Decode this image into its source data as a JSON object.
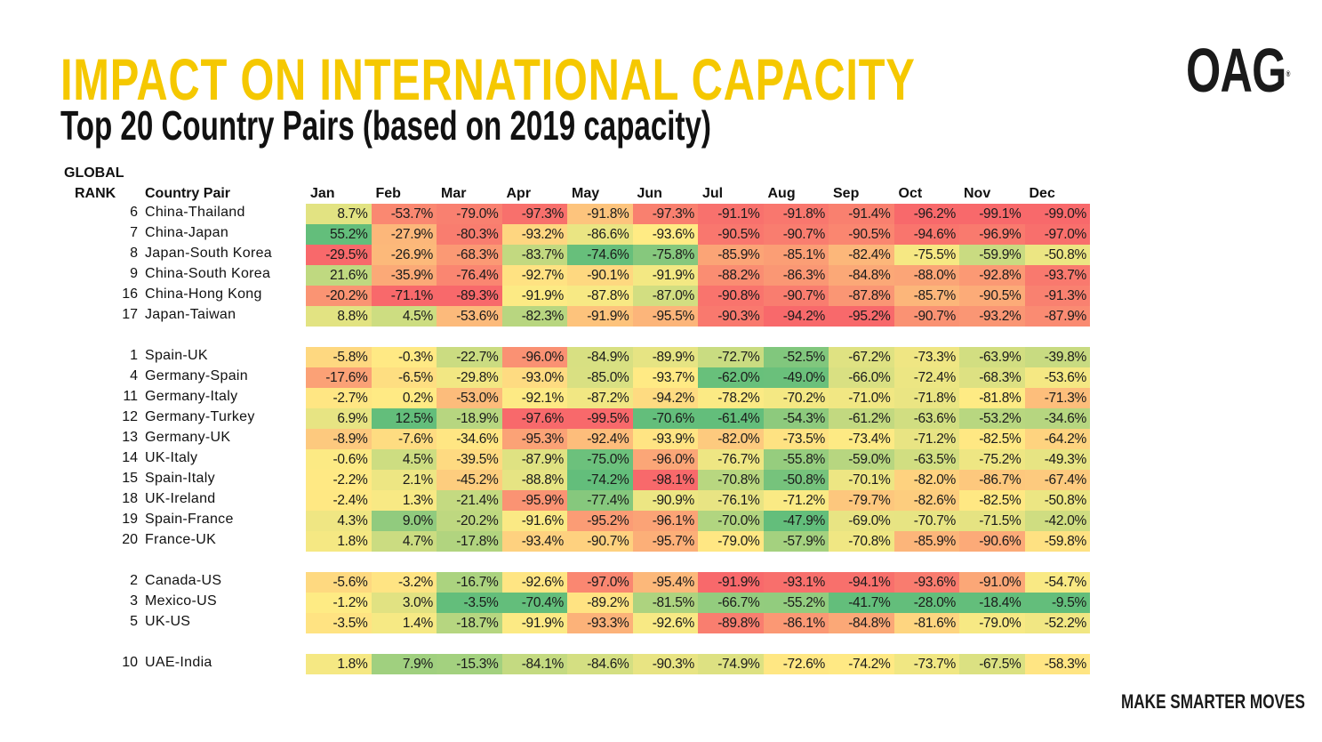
{
  "header": {
    "title": "IMPACT ON INTERNATIONAL CAPACITY",
    "subtitle": "Top 20 Country Pairs (based on 2019 capacity)",
    "logo": "OAG",
    "logo_mark": "®",
    "tagline": "MAKE SMARTER MOVES"
  },
  "colors": {
    "title": "#f5c800",
    "scale_low": "#f8696b",
    "scale_mid": "#ffeb84",
    "scale_high": "#63be7b"
  },
  "chart_data": {
    "type": "heatmap",
    "title": "IMPACT ON INTERNATIONAL CAPACITY",
    "subtitle": "Top 20 Country Pairs (based on 2019 capacity)",
    "color_scale": "per-column red-yellow-green (low-mid-high)",
    "columns": {
      "rank_line1": "GLOBAL",
      "rank_line2": "RANK",
      "pair": "Country Pair",
      "months": [
        "Jan",
        "Feb",
        "Mar",
        "Apr",
        "May",
        "Jun",
        "Jul",
        "Aug",
        "Sep",
        "Oct",
        "Nov",
        "Dec"
      ]
    },
    "groups": [
      {
        "rows": [
          {
            "rank": "6",
            "pair": "China-Thailand",
            "values": [
              8.7,
              -53.7,
              -79.0,
              -97.3,
              -91.8,
              -97.3,
              -91.1,
              -91.8,
              -91.4,
              -96.2,
              -99.1,
              -99.0
            ]
          },
          {
            "rank": "7",
            "pair": "China-Japan",
            "values": [
              55.2,
              -27.9,
              -80.3,
              -93.2,
              -86.6,
              -93.6,
              -90.5,
              -90.7,
              -90.5,
              -94.6,
              -96.9,
              -97.0
            ]
          },
          {
            "rank": "8",
            "pair": "Japan-South Korea",
            "values": [
              -29.5,
              -26.9,
              -68.3,
              -83.7,
              -74.6,
              -75.8,
              -85.9,
              -85.1,
              -82.4,
              -75.5,
              -59.9,
              -50.8
            ]
          },
          {
            "rank": "9",
            "pair": "China-South Korea",
            "values": [
              21.6,
              -35.9,
              -76.4,
              -92.7,
              -90.1,
              -91.9,
              -88.2,
              -86.3,
              -84.8,
              -88.0,
              -92.8,
              -93.7
            ]
          },
          {
            "rank": "16",
            "pair": "China-Hong Kong",
            "values": [
              -20.2,
              -71.1,
              -89.3,
              -91.9,
              -87.8,
              -87.0,
              -90.8,
              -90.7,
              -87.8,
              -85.7,
              -90.5,
              -91.3
            ]
          },
          {
            "rank": "17",
            "pair": "Japan-Taiwan",
            "values": [
              8.8,
              4.5,
              -53.6,
              -82.3,
              -91.9,
              -95.5,
              -90.3,
              -94.2,
              -95.2,
              -90.7,
              -93.2,
              -87.9
            ]
          }
        ]
      },
      {
        "rows": [
          {
            "rank": "1",
            "pair": "Spain-UK",
            "values": [
              -5.8,
              -0.3,
              -22.7,
              -96.0,
              -84.9,
              -89.9,
              -72.7,
              -52.5,
              -67.2,
              -73.3,
              -63.9,
              -39.8
            ]
          },
          {
            "rank": "4",
            "pair": "Germany-Spain",
            "values": [
              -17.6,
              -6.5,
              -29.8,
              -93.0,
              -85.0,
              -93.7,
              -62.0,
              -49.0,
              -66.0,
              -72.4,
              -68.3,
              -53.6
            ]
          },
          {
            "rank": "11",
            "pair": "Germany-Italy",
            "values": [
              -2.7,
              0.2,
              -53.0,
              -92.1,
              -87.2,
              -94.2,
              -78.2,
              -70.2,
              -71.0,
              -71.8,
              -81.8,
              -71.3
            ]
          },
          {
            "rank": "12",
            "pair": "Germany-Turkey",
            "values": [
              6.9,
              12.5,
              -18.9,
              -97.6,
              -99.5,
              -70.6,
              -61.4,
              -54.3,
              -61.2,
              -63.6,
              -53.2,
              -34.6
            ]
          },
          {
            "rank": "13",
            "pair": "Germany-UK",
            "values": [
              -8.9,
              -7.6,
              -34.6,
              -95.3,
              -92.4,
              -93.9,
              -82.0,
              -73.5,
              -73.4,
              -71.2,
              -82.5,
              -64.2
            ]
          },
          {
            "rank": "14",
            "pair": "UK-Italy",
            "values": [
              -0.6,
              4.5,
              -39.5,
              -87.9,
              -75.0,
              -96.0,
              -76.7,
              -55.8,
              -59.0,
              -63.5,
              -75.2,
              -49.3
            ]
          },
          {
            "rank": "15",
            "pair": "Spain-Italy",
            "values": [
              -2.2,
              2.1,
              -45.2,
              -88.8,
              -74.2,
              -98.1,
              -70.8,
              -50.8,
              -70.1,
              -82.0,
              -86.7,
              -67.4
            ]
          },
          {
            "rank": "18",
            "pair": "UK-Ireland",
            "values": [
              -2.4,
              1.3,
              -21.4,
              -95.9,
              -77.4,
              -90.9,
              -76.1,
              -71.2,
              -79.7,
              -82.6,
              -82.5,
              -50.8
            ]
          },
          {
            "rank": "19",
            "pair": "Spain-France",
            "values": [
              4.3,
              9.0,
              -20.2,
              -91.6,
              -95.2,
              -96.1,
              -70.0,
              -47.9,
              -69.0,
              -70.7,
              -71.5,
              -42.0
            ]
          },
          {
            "rank": "20",
            "pair": "France-UK",
            "values": [
              1.8,
              4.7,
              -17.8,
              -93.4,
              -90.7,
              -95.7,
              -79.0,
              -57.9,
              -70.8,
              -85.9,
              -90.6,
              -59.8
            ]
          }
        ]
      },
      {
        "rows": [
          {
            "rank": "2",
            "pair": "Canada-US",
            "values": [
              -5.6,
              -3.2,
              -16.7,
              -92.6,
              -97.0,
              -95.4,
              -91.9,
              -93.1,
              -94.1,
              -93.6,
              -91.0,
              -54.7
            ]
          },
          {
            "rank": "3",
            "pair": "Mexico-US",
            "values": [
              -1.2,
              3.0,
              -3.5,
              -70.4,
              -89.2,
              -81.5,
              -66.7,
              -55.2,
              -41.7,
              -28.0,
              -18.4,
              -9.5
            ]
          },
          {
            "rank": "5",
            "pair": "UK-US",
            "values": [
              -3.5,
              1.4,
              -18.7,
              -91.9,
              -93.3,
              -92.6,
              -89.8,
              -86.1,
              -84.8,
              -81.6,
              -79.0,
              -52.2
            ]
          }
        ]
      },
      {
        "rows": [
          {
            "rank": "10",
            "pair": "UAE-India",
            "values": [
              1.8,
              7.9,
              -15.3,
              -84.1,
              -84.6,
              -90.3,
              -74.9,
              -72.6,
              -74.2,
              -73.7,
              -67.5,
              -58.3
            ]
          }
        ]
      }
    ]
  }
}
